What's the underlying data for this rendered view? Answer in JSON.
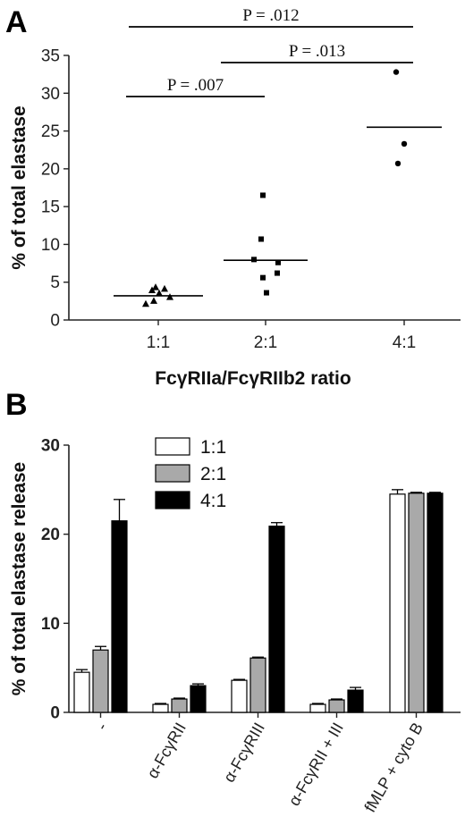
{
  "panels": {
    "a": {
      "letter": "A"
    },
    "b": {
      "letter": "B"
    }
  },
  "chart_data": [
    {
      "type": "scatter",
      "title": "",
      "ylabel": "% of total elastase",
      "xlabel": "FcγRIIa/FcγRIIb2 ratio",
      "categories": [
        "1:1",
        "2:1",
        "4:1"
      ],
      "ylim": [
        0,
        35
      ],
      "yticks": [
        0,
        5,
        10,
        15,
        20,
        25,
        30,
        35
      ],
      "grid": false,
      "series": [
        {
          "marker": "triangle",
          "values": [
            2.1,
            2.5,
            3.0,
            3.5,
            3.9,
            4.1,
            4.3
          ],
          "mean": 3.2
        },
        {
          "marker": "square",
          "values": [
            3.6,
            5.6,
            6.2,
            7.6,
            8.0,
            10.7,
            16.5
          ],
          "mean": 7.9
        },
        {
          "marker": "circle",
          "values": [
            20.7,
            23.3,
            32.8
          ],
          "mean": 25.5
        }
      ],
      "annotations": [
        {
          "text": "P = .007",
          "from": "1:1",
          "to": "2:1"
        },
        {
          "text": "P = .013",
          "from": "2:1",
          "to": "4:1"
        },
        {
          "text": "P = .012",
          "from": "1:1",
          "to": "4:1"
        }
      ]
    },
    {
      "type": "bar",
      "title": "",
      "ylabel": "% of total elastase  release",
      "xlabel": "",
      "categories": [
        "-",
        "α-FcγRII",
        "α-FcγRIII",
        "α-FcγRII + III",
        "fMLP + cyto B"
      ],
      "ylim": [
        0,
        30
      ],
      "yticks": [
        0,
        10,
        20,
        30
      ],
      "grid": false,
      "legend_position": "top-left",
      "series": [
        {
          "name": "1:1",
          "color": "#ffffff",
          "values": [
            4.5,
            0.9,
            3.6,
            0.9,
            24.5
          ],
          "errors": [
            0.3,
            0.1,
            0.1,
            0.1,
            0.5
          ]
        },
        {
          "name": "2:1",
          "color": "#a9a9a9",
          "values": [
            7.0,
            1.5,
            6.1,
            1.4,
            24.6
          ],
          "errors": [
            0.4,
            0.1,
            0.1,
            0.1,
            0.1
          ]
        },
        {
          "name": "4:1",
          "color": "#000000",
          "values": [
            21.5,
            3.0,
            20.9,
            2.5,
            24.6
          ],
          "errors": [
            2.4,
            0.2,
            0.4,
            0.3,
            0.1
          ]
        }
      ]
    }
  ]
}
